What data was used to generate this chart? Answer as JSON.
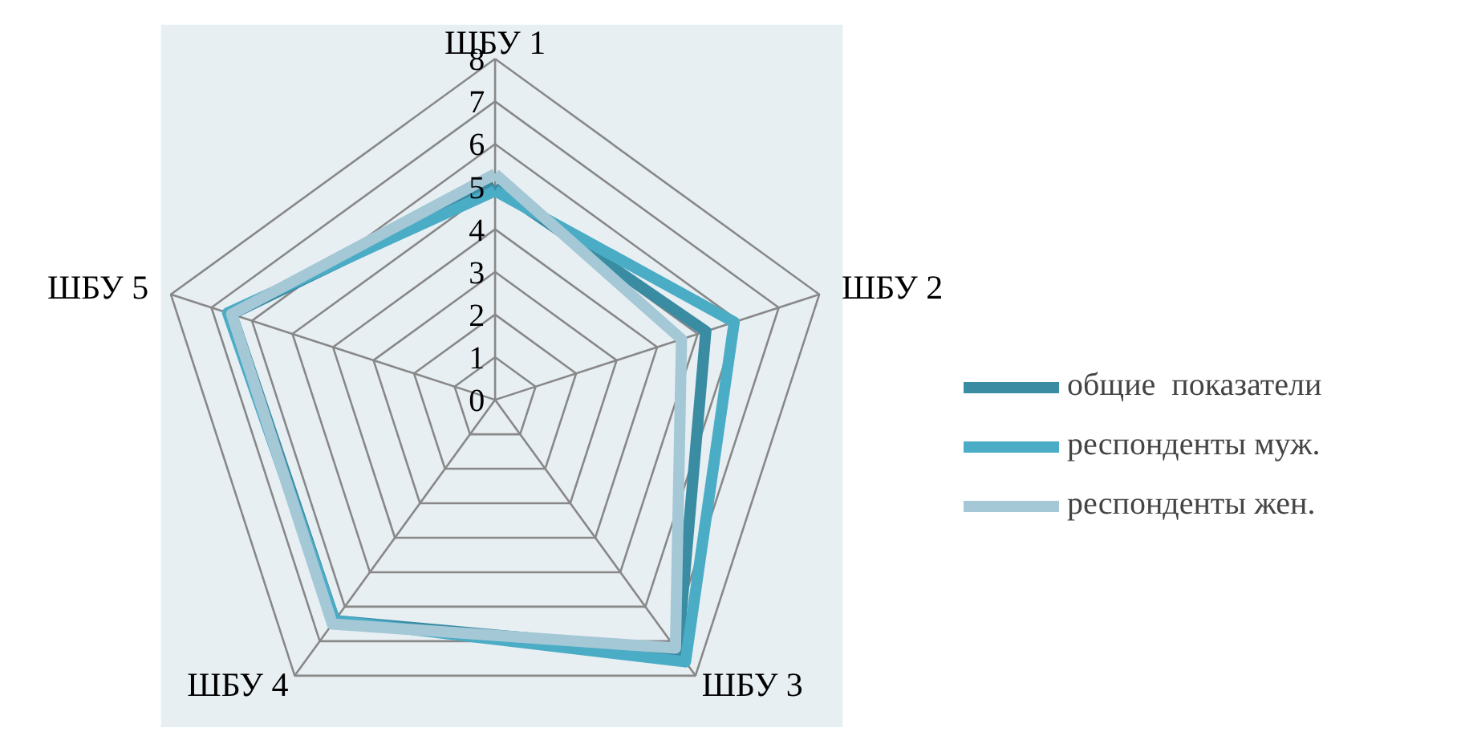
{
  "chart_data": {
    "type": "radar",
    "categories": [
      "ШБУ 1",
      "ШБУ 2",
      "ШБУ 3",
      "ШБУ 4",
      "ШБУ 5"
    ],
    "ylim": [
      0,
      8
    ],
    "yticks": [
      0,
      1,
      2,
      3,
      4,
      5,
      6,
      7,
      8
    ],
    "legend": "right",
    "series": [
      {
        "name": "общие  показатели",
        "color": "#3a8ca3",
        "values": [
          5.0,
          5.2,
          7.3,
          6.4,
          6.5
        ]
      },
      {
        "name": "респонденты муж.",
        "color": "#4bacc6",
        "values": [
          4.9,
          5.9,
          7.6,
          6.4,
          6.6
        ]
      },
      {
        "name": "респонденты жен.",
        "color": "#a5c8d6",
        "values": [
          5.3,
          4.6,
          7.2,
          6.5,
          6.5
        ]
      }
    ]
  }
}
